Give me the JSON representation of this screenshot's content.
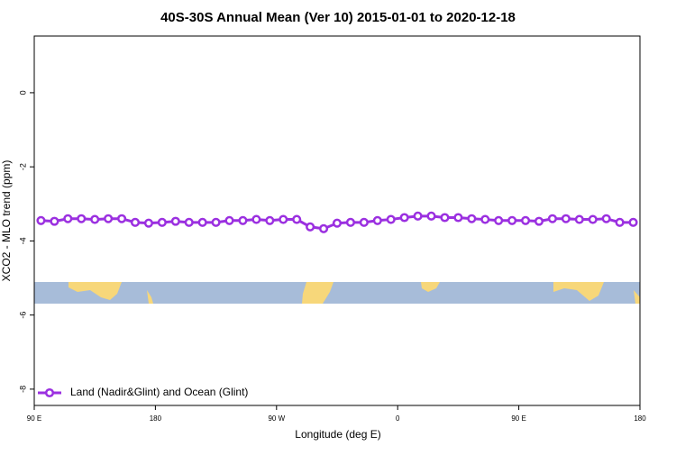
{
  "chart_data": {
    "type": "line",
    "title": "40S-30S Annual Mean (Ver 10)   2015-01-01 to 2020-12-18",
    "x_label": "Longitude (deg E)",
    "y_label": "XCO2 - MLO trend (ppm)",
    "x": [
      95,
      105,
      115,
      125,
      135,
      145,
      155,
      165,
      175,
      185,
      195,
      205,
      215,
      225,
      235,
      245,
      255,
      265,
      275,
      285,
      295,
      305,
      315,
      325,
      335,
      345,
      355,
      365,
      375,
      385,
      395,
      405,
      415,
      425,
      435,
      445,
      455,
      465,
      475,
      485,
      495,
      505,
      515,
      525,
      535
    ],
    "series": [
      {
        "name": "Land (Nadir&Glint) and Ocean (Glint)",
        "color": "#9b30e0",
        "values": [
          -3.45,
          -3.47,
          -3.4,
          -3.4,
          -3.42,
          -3.4,
          -3.4,
          -3.5,
          -3.52,
          -3.5,
          -3.47,
          -3.5,
          -3.5,
          -3.5,
          -3.45,
          -3.45,
          -3.42,
          -3.45,
          -3.42,
          -3.42,
          -3.62,
          -3.67,
          -3.52,
          -3.5,
          -3.5,
          -3.45,
          -3.42,
          -3.37,
          -3.33,
          -3.33,
          -3.37,
          -3.37,
          -3.4,
          -3.42,
          -3.45,
          -3.45,
          -3.45,
          -3.47,
          -3.4,
          -3.4,
          -3.42,
          -3.42,
          -3.4,
          -3.5,
          -3.5
        ]
      }
    ],
    "xlim": [
      90,
      540
    ],
    "xticks": [
      {
        "value": 90,
        "label": "90 E"
      },
      {
        "value": 180,
        "label": "180"
      },
      {
        "value": 270,
        "label": "90 W"
      },
      {
        "value": 360,
        "label": "0"
      },
      {
        "value": 450,
        "label": "90 E"
      },
      {
        "value": 540,
        "label": "180"
      }
    ],
    "ylim": [
      -8.44,
      1.53
    ],
    "yticks": [
      0,
      -2,
      -4,
      -6,
      -8
    ],
    "legend": "bottom-left"
  }
}
